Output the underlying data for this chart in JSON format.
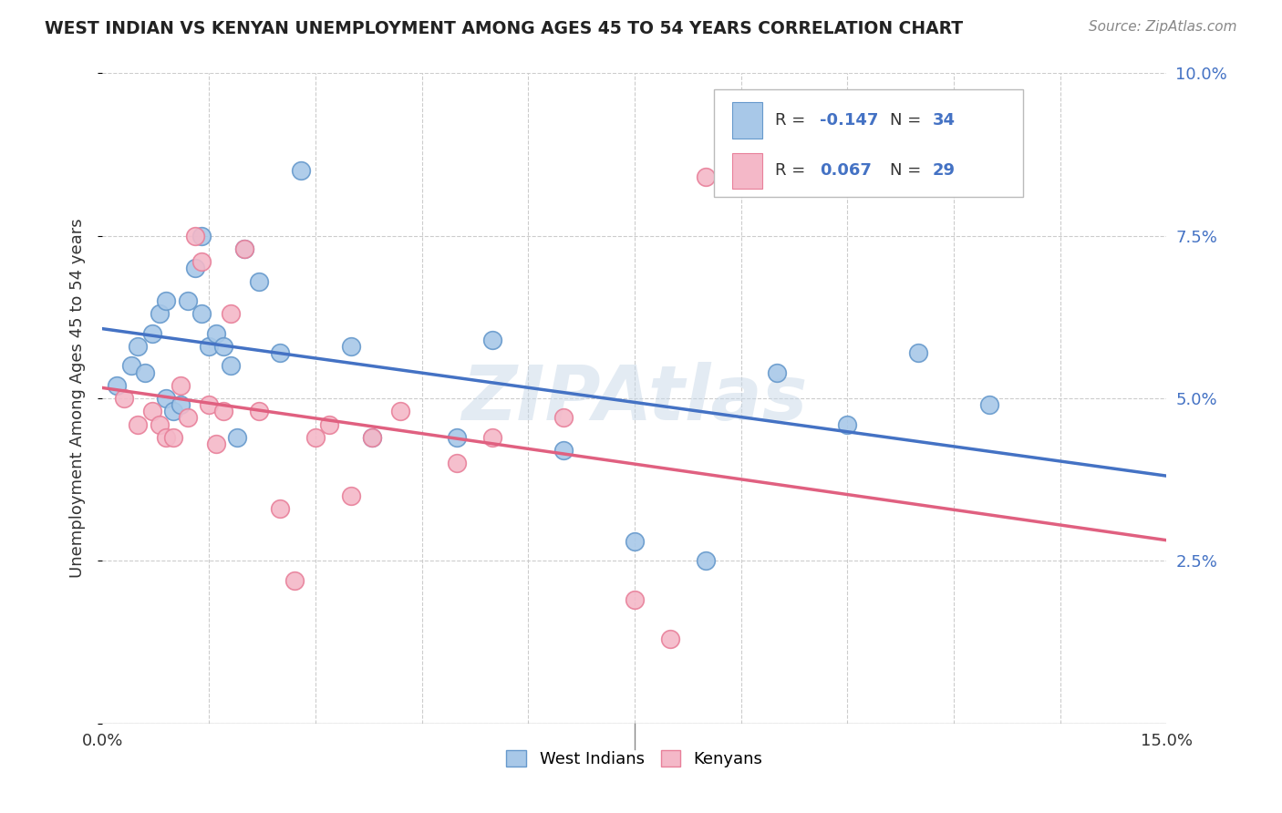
{
  "title": "WEST INDIAN VS KENYAN UNEMPLOYMENT AMONG AGES 45 TO 54 YEARS CORRELATION CHART",
  "source": "Source: ZipAtlas.com",
  "ylabel": "Unemployment Among Ages 45 to 54 years",
  "xlim": [
    0.0,
    0.15
  ],
  "ylim": [
    0.0,
    0.1
  ],
  "yticks": [
    0.0,
    0.025,
    0.05,
    0.075,
    0.1
  ],
  "yticklabels": [
    "",
    "2.5%",
    "5.0%",
    "7.5%",
    "10.0%"
  ],
  "xtick_left_label": "0.0%",
  "xtick_right_label": "15.0%",
  "west_indian_color": "#a8c8e8",
  "kenyan_color": "#f4b8c8",
  "west_indian_marker_edge": "#6699cc",
  "kenyan_marker_edge": "#e8809a",
  "west_indian_line_color": "#4472c4",
  "kenyan_line_color": "#e06080",
  "legend_R_west": "-0.147",
  "legend_N_west": "34",
  "legend_R_kenyan": "0.067",
  "legend_N_kenyan": "29",
  "r_n_color": "#4472c4",
  "background_color": "#ffffff",
  "grid_color": "#cccccc",
  "watermark_text": "ZIPAtlas",
  "watermark_color": "#c8d8e8",
  "west_indian_x": [
    0.002,
    0.004,
    0.005,
    0.006,
    0.007,
    0.008,
    0.009,
    0.009,
    0.01,
    0.011,
    0.012,
    0.013,
    0.014,
    0.014,
    0.015,
    0.016,
    0.017,
    0.018,
    0.019,
    0.02,
    0.022,
    0.025,
    0.028,
    0.035,
    0.038,
    0.05,
    0.055,
    0.065,
    0.075,
    0.085,
    0.095,
    0.105,
    0.115,
    0.125
  ],
  "west_indian_y": [
    0.052,
    0.055,
    0.058,
    0.054,
    0.06,
    0.063,
    0.065,
    0.05,
    0.048,
    0.049,
    0.065,
    0.07,
    0.075,
    0.063,
    0.058,
    0.06,
    0.058,
    0.055,
    0.044,
    0.073,
    0.068,
    0.057,
    0.085,
    0.058,
    0.044,
    0.044,
    0.059,
    0.042,
    0.028,
    0.025,
    0.054,
    0.046,
    0.057,
    0.049
  ],
  "kenyan_x": [
    0.003,
    0.005,
    0.007,
    0.008,
    0.009,
    0.01,
    0.011,
    0.012,
    0.013,
    0.014,
    0.015,
    0.016,
    0.017,
    0.018,
    0.02,
    0.022,
    0.025,
    0.027,
    0.03,
    0.032,
    0.035,
    0.038,
    0.042,
    0.05,
    0.055,
    0.065,
    0.075,
    0.08,
    0.085
  ],
  "kenyan_y": [
    0.05,
    0.046,
    0.048,
    0.046,
    0.044,
    0.044,
    0.052,
    0.047,
    0.075,
    0.071,
    0.049,
    0.043,
    0.048,
    0.063,
    0.073,
    0.048,
    0.033,
    0.022,
    0.044,
    0.046,
    0.035,
    0.044,
    0.048,
    0.04,
    0.044,
    0.047,
    0.019,
    0.013,
    0.084
  ],
  "legend_west_label": "West Indians",
  "legend_kenyan_label": "Kenyans"
}
